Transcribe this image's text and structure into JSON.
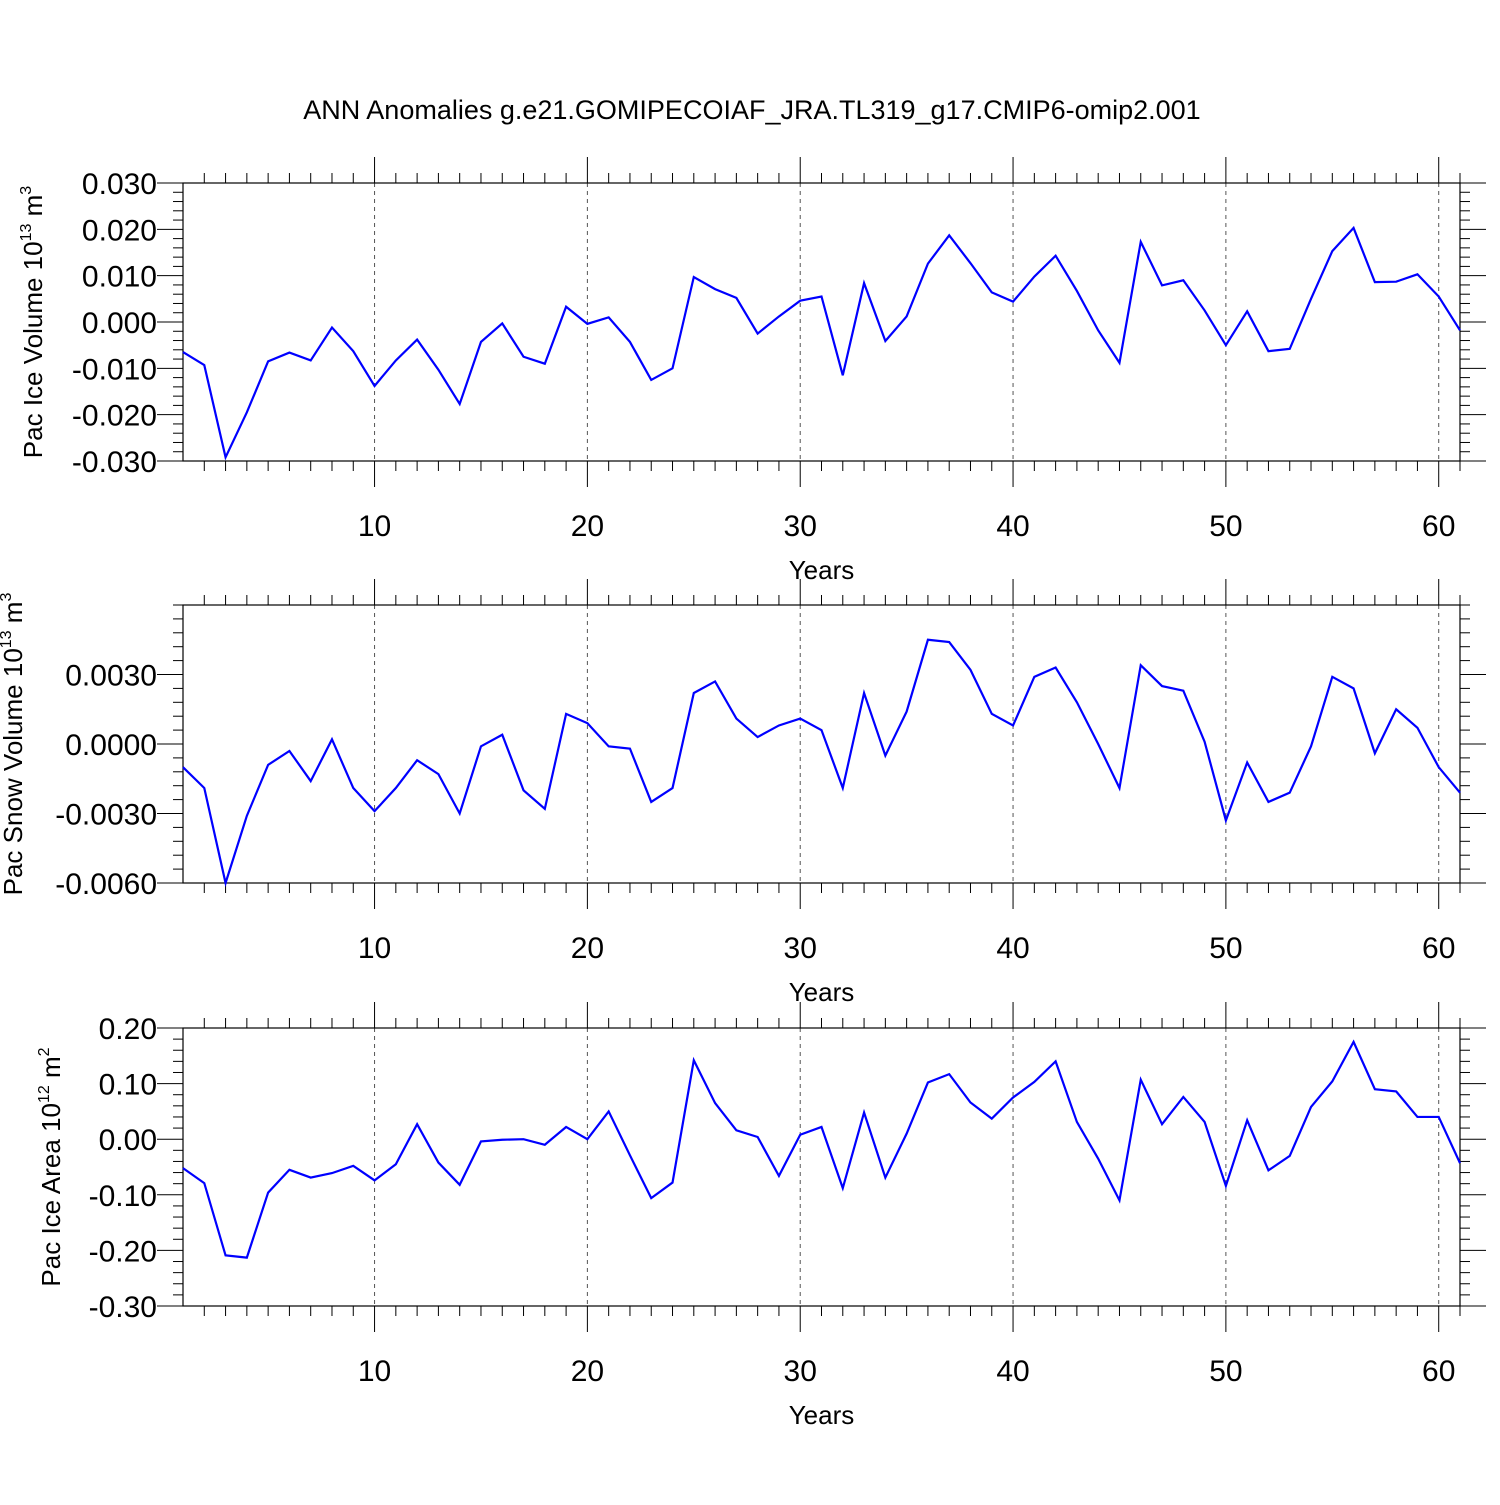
{
  "title": "ANN Anomalies g.e21.GOMIPECOIAF_JRA.TL319_g17.CMIP6-omip2.001",
  "colors": {
    "series": "#0000ff",
    "axis": "#000000",
    "grid": "#555555",
    "background": "#ffffff"
  },
  "chart_data": [
    {
      "type": "line",
      "xlabel": "Years",
      "ylabel": {
        "base": "Pac Ice Volume 10",
        "sup": "13",
        "unit": " m",
        "unit_sup": "3"
      },
      "xlim": [
        1,
        61
      ],
      "ylim": [
        -0.03,
        0.03
      ],
      "xticks": [
        10,
        20,
        30,
        40,
        50,
        60
      ],
      "xtick_labels": [
        "10",
        "20",
        "30",
        "40",
        "50",
        "60"
      ],
      "yticks": [
        -0.03,
        -0.02,
        -0.01,
        0.0,
        0.01,
        0.02,
        0.03
      ],
      "ytick_labels": [
        "-0.030",
        "-0.020",
        "-0.010",
        "0.000",
        "0.010",
        "0.020",
        "0.030"
      ],
      "grid": "vertical dashed at x ticks",
      "x": [
        1,
        2,
        3,
        4,
        5,
        6,
        7,
        8,
        9,
        10,
        11,
        12,
        13,
        14,
        15,
        16,
        17,
        18,
        19,
        20,
        21,
        22,
        23,
        24,
        25,
        26,
        27,
        28,
        29,
        30,
        31,
        32,
        33,
        34,
        35,
        36,
        37,
        38,
        39,
        40,
        41,
        42,
        43,
        44,
        45,
        46,
        47,
        48,
        49,
        50,
        51,
        52,
        53,
        54,
        55,
        56,
        57,
        58,
        59,
        60,
        61
      ],
      "series": [
        {
          "values": [
            -0.0065,
            -0.0093,
            -0.0292,
            -0.0195,
            -0.0085,
            -0.0066,
            -0.0083,
            -0.0012,
            -0.0063,
            -0.0138,
            -0.0083,
            -0.0038,
            -0.0103,
            -0.0177,
            -0.0043,
            -0.0003,
            -0.0075,
            -0.009,
            0.0033,
            -0.0004,
            0.001,
            -0.0043,
            -0.0125,
            -0.01,
            0.0097,
            0.0071,
            0.0052,
            -0.0025,
            0.0012,
            0.0046,
            0.0055,
            -0.0115,
            0.0084,
            -0.0041,
            0.0012,
            0.0126,
            0.0187,
            0.0127,
            0.0064,
            0.0044,
            0.0098,
            0.0143,
            0.0067,
            -0.0018,
            -0.0088,
            0.0173,
            0.0079,
            0.009,
            0.0025,
            -0.005,
            0.0023,
            -0.0063,
            -0.0058,
            0.005,
            0.0153,
            0.0203,
            0.0086,
            0.0087,
            0.0103,
            0.0055,
            -0.0018
          ]
        }
      ]
    },
    {
      "type": "line",
      "xlabel": "Years",
      "ylabel": {
        "base": "Pac Snow Volume 10",
        "sup": "13",
        "unit": " m",
        "unit_sup": "3"
      },
      "xlim": [
        1,
        61
      ],
      "ylim": [
        -0.006,
        0.006
      ],
      "xticks": [
        10,
        20,
        30,
        40,
        50,
        60
      ],
      "xtick_labels": [
        "10",
        "20",
        "30",
        "40",
        "50",
        "60"
      ],
      "yticks": [
        -0.006,
        -0.003,
        0.0,
        0.003
      ],
      "ytick_labels": [
        "-0.0060",
        "-0.0030",
        "0.0000",
        "0.0030"
      ],
      "grid": "vertical dashed at x ticks",
      "x": [
        1,
        2,
        3,
        4,
        5,
        6,
        7,
        8,
        9,
        10,
        11,
        12,
        13,
        14,
        15,
        16,
        17,
        18,
        19,
        20,
        21,
        22,
        23,
        24,
        25,
        26,
        27,
        28,
        29,
        30,
        31,
        32,
        33,
        34,
        35,
        36,
        37,
        38,
        39,
        40,
        41,
        42,
        43,
        44,
        45,
        46,
        47,
        48,
        49,
        50,
        51,
        52,
        53,
        54,
        55,
        56,
        57,
        58,
        59,
        60,
        61
      ],
      "series": [
        {
          "values": [
            -0.001,
            -0.0019,
            -0.006,
            -0.0031,
            -0.0009,
            -0.0003,
            -0.0016,
            0.0002,
            -0.0019,
            -0.0029,
            -0.0019,
            -0.0007,
            -0.0013,
            -0.003,
            -0.0001,
            0.0004,
            -0.002,
            -0.0028,
            0.0013,
            0.0009,
            -0.0001,
            -0.0002,
            -0.0025,
            -0.0019,
            0.0022,
            0.0027,
            0.0011,
            0.0003,
            0.0008,
            0.0011,
            0.0006,
            -0.0019,
            0.0022,
            -0.0005,
            0.0014,
            0.0045,
            0.0044,
            0.0032,
            0.0013,
            0.0008,
            0.0029,
            0.0033,
            0.0018,
            0.0,
            -0.0019,
            0.0034,
            0.0025,
            0.0023,
            0.0001,
            -0.0033,
            -0.0008,
            -0.0025,
            -0.0021,
            -0.0001,
            0.0029,
            0.0024,
            -0.0004,
            0.0015,
            0.0007,
            -0.001,
            -0.0021
          ]
        }
      ]
    },
    {
      "type": "line",
      "xlabel": "Years",
      "ylabel": {
        "base": "Pac Ice Area 10",
        "sup": "12",
        "unit": " m",
        "unit_sup": "2"
      },
      "xlim": [
        1,
        61
      ],
      "ylim": [
        -0.3,
        0.2
      ],
      "xticks": [
        10,
        20,
        30,
        40,
        50,
        60
      ],
      "xtick_labels": [
        "10",
        "20",
        "30",
        "40",
        "50",
        "60"
      ],
      "yticks": [
        -0.3,
        -0.2,
        -0.1,
        0.0,
        0.1,
        0.2
      ],
      "ytick_labels": [
        "-0.30",
        "-0.20",
        "-0.10",
        "0.00",
        "0.10",
        "0.20"
      ],
      "grid": "vertical dashed at x ticks",
      "x": [
        1,
        2,
        3,
        4,
        5,
        6,
        7,
        8,
        9,
        10,
        11,
        12,
        13,
        14,
        15,
        16,
        17,
        18,
        19,
        20,
        21,
        22,
        23,
        24,
        25,
        26,
        27,
        28,
        29,
        30,
        31,
        32,
        33,
        34,
        35,
        36,
        37,
        38,
        39,
        40,
        41,
        42,
        43,
        44,
        45,
        46,
        47,
        48,
        49,
        50,
        51,
        52,
        53,
        54,
        55,
        56,
        57,
        58,
        59,
        60,
        61
      ],
      "series": [
        {
          "values": [
            -0.052,
            -0.079,
            -0.209,
            -0.213,
            -0.096,
            -0.055,
            -0.069,
            -0.061,
            -0.048,
            -0.074,
            -0.045,
            0.027,
            -0.042,
            -0.082,
            -0.004,
            -0.001,
            0.0,
            -0.01,
            0.022,
            0.0,
            0.05,
            -0.029,
            -0.106,
            -0.078,
            0.142,
            0.065,
            0.016,
            0.004,
            -0.066,
            0.008,
            0.022,
            -0.088,
            0.048,
            -0.069,
            0.01,
            0.102,
            0.117,
            0.066,
            0.037,
            0.075,
            0.103,
            0.14,
            0.031,
            -0.035,
            -0.11,
            0.107,
            0.027,
            0.076,
            0.031,
            -0.084,
            0.034,
            -0.056,
            -0.03,
            0.058,
            0.104,
            0.175,
            0.09,
            0.086,
            0.04,
            0.04,
            -0.043
          ]
        }
      ]
    }
  ]
}
